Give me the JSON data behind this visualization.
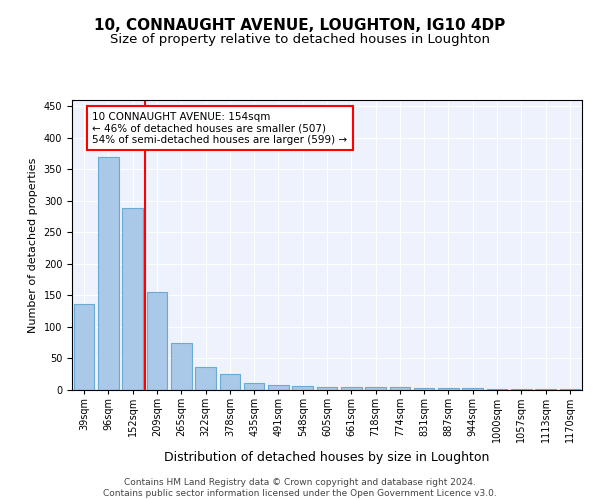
{
  "title_line1": "10, CONNAUGHT AVENUE, LOUGHTON, IG10 4DP",
  "title_line2": "Size of property relative to detached houses in Loughton",
  "xlabel": "Distribution of detached houses by size in Loughton",
  "ylabel": "Number of detached properties",
  "categories": [
    "39sqm",
    "96sqm",
    "152sqm",
    "209sqm",
    "265sqm",
    "322sqm",
    "378sqm",
    "435sqm",
    "491sqm",
    "548sqm",
    "605sqm",
    "661sqm",
    "718sqm",
    "774sqm",
    "831sqm",
    "887sqm",
    "944sqm",
    "1000sqm",
    "1057sqm",
    "1113sqm",
    "1170sqm"
  ],
  "values": [
    136,
    370,
    288,
    155,
    75,
    37,
    25,
    11,
    8,
    7,
    4,
    4,
    4,
    4,
    3,
    3,
    3,
    2,
    2,
    2,
    2
  ],
  "bar_color": "#aac8e8",
  "bar_edge_color": "#6aaad4",
  "vline_x_index": 2,
  "vline_color": "red",
  "annotation_line1": "10 CONNAUGHT AVENUE: 154sqm",
  "annotation_line2": "← 46% of detached houses are smaller (507)",
  "annotation_line3": "54% of semi-detached houses are larger (599) →",
  "annotation_box_color": "white",
  "annotation_box_edge": "red",
  "ylim": [
    0,
    460
  ],
  "yticks": [
    0,
    50,
    100,
    150,
    200,
    250,
    300,
    350,
    400,
    450
  ],
  "background_color": "#eef2fc",
  "footer_text": "Contains HM Land Registry data © Crown copyright and database right 2024.\nContains public sector information licensed under the Open Government Licence v3.0.",
  "title_fontsize": 11,
  "subtitle_fontsize": 9.5,
  "xlabel_fontsize": 9,
  "ylabel_fontsize": 8,
  "tick_fontsize": 7,
  "footer_fontsize": 6.5
}
